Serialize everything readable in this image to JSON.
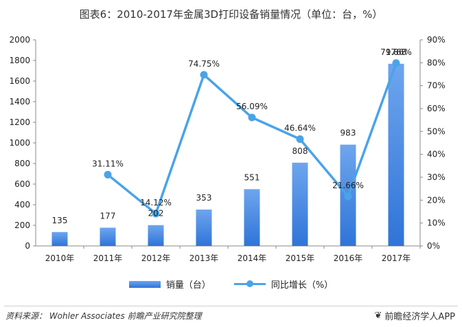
{
  "title": "图表6：2010-2017年金属3D打印设备销量情况（单位：台，%）",
  "legend": {
    "bar_label": "销量（台）",
    "line_label": "同比增长（%）"
  },
  "footer": {
    "source": "资料来源： Wohler Associates 前瞻产业研究院整理",
    "brand": "前瞻经济学人APP",
    "brand_icon": "leaf-logo-icon"
  },
  "colors": {
    "bar_top": "#6ea5ee",
    "bar_bottom": "#2f74d8",
    "line": "#4aa3e8",
    "axis": "#888888"
  },
  "chart_data": {
    "type": "bar",
    "categories": [
      "2010年",
      "2011年",
      "2012年",
      "2013年",
      "2014年",
      "2015年",
      "2016年",
      "2017年"
    ],
    "series": [
      {
        "name": "销量（台）",
        "type": "bar",
        "axis": "left",
        "values": [
          135,
          177,
          202,
          353,
          551,
          808,
          983,
          1768
        ],
        "labels": [
          "135",
          "177",
          "202",
          "353",
          "551",
          "808",
          "983",
          "1768"
        ]
      },
      {
        "name": "同比增长（%）",
        "type": "line",
        "axis": "right",
        "values": [
          null,
          31.11,
          14.12,
          74.75,
          56.09,
          46.64,
          21.66,
          79.86
        ],
        "labels": [
          "",
          "31.11%",
          "14.12%",
          "74.75%",
          "56.09%",
          "46.64%",
          "21.66%",
          "79.86%"
        ]
      }
    ],
    "y_left": {
      "min": 0,
      "max": 2000,
      "ticks": [
        "0",
        "200",
        "400",
        "600",
        "800",
        "1000",
        "1200",
        "1400",
        "1600",
        "1800",
        "2000"
      ]
    },
    "y_right": {
      "min": 0,
      "max": 90,
      "ticks": [
        "0%",
        "10%",
        "20%",
        "30%",
        "40%",
        "50%",
        "60%",
        "70%",
        "80%",
        "90%"
      ]
    },
    "grid": false,
    "legend_position": "bottom"
  }
}
